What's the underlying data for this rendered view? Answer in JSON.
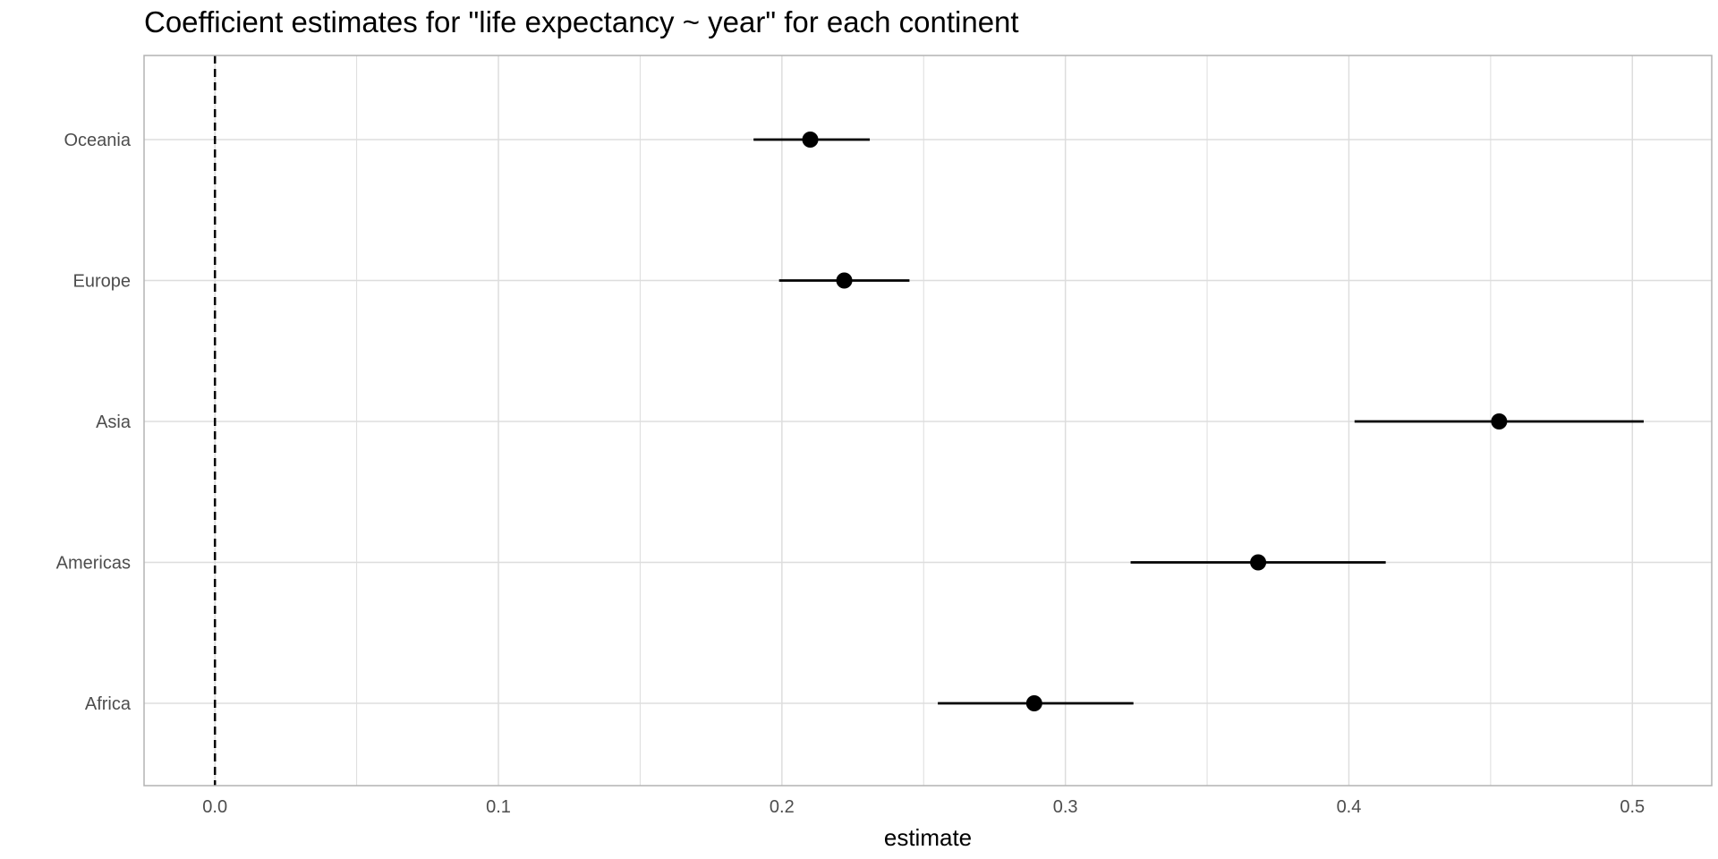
{
  "chart_data": {
    "type": "scatter",
    "title": "Coefficient estimates for \"life expectancy ~ year\" for each continent",
    "xlabel": "estimate",
    "ylabel": "",
    "xlim": [
      -0.025,
      0.528
    ],
    "x_ticks": [
      0.0,
      0.1,
      0.2,
      0.3,
      0.4,
      0.5
    ],
    "x_tick_labels": [
      "0.0",
      "0.1",
      "0.2",
      "0.3",
      "0.4",
      "0.5"
    ],
    "categories": [
      "Africa",
      "Americas",
      "Asia",
      "Europe",
      "Oceania"
    ],
    "series": [
      {
        "estimates": [
          0.289,
          0.368,
          0.453,
          0.222,
          0.21
        ],
        "conf_low": [
          0.255,
          0.323,
          0.402,
          0.199,
          0.19
        ],
        "conf_high": [
          0.324,
          0.413,
          0.504,
          0.245,
          0.231
        ]
      }
    ],
    "reference_line": {
      "x": 0,
      "style": "dashed"
    },
    "grid": true,
    "legend": "none",
    "colors": {
      "point": "#000000",
      "errorbar": "#000000",
      "grid": "#dddddd",
      "panel_border": "#b3b3b3",
      "tick_text": "#4d4d4d"
    }
  }
}
